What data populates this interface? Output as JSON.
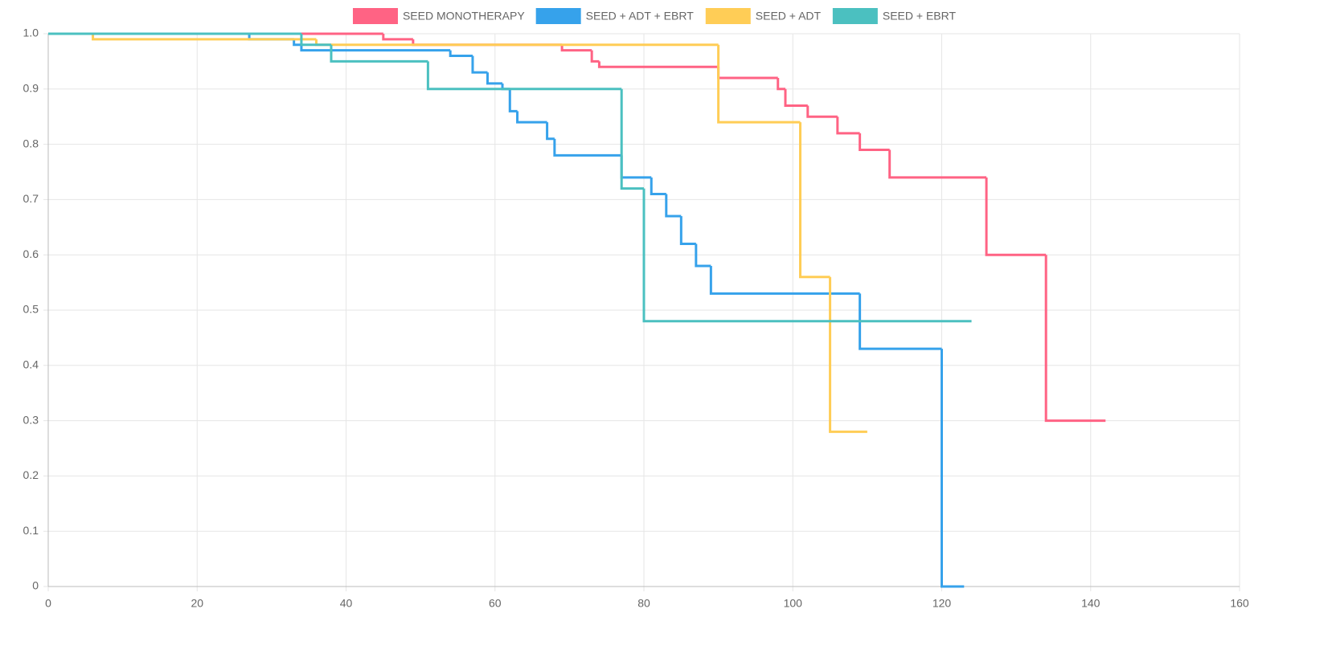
{
  "chart_data": {
    "type": "step",
    "xlim": [
      0,
      160
    ],
    "xticks": [
      0,
      20,
      40,
      60,
      80,
      100,
      120,
      140,
      160
    ],
    "ylim": [
      0,
      1
    ],
    "yticks": [
      0,
      0.1,
      0.2,
      0.3,
      0.4,
      0.5,
      0.6,
      0.7,
      0.8,
      0.9,
      {
        "value": 1,
        "label": "1.0"
      }
    ],
    "grid": true,
    "legend": "top",
    "series": [
      {
        "name": "SEED MONOTHERAPY",
        "color": "#ff6384",
        "x": [
          0,
          45,
          49,
          69,
          73,
          74,
          90,
          98,
          99,
          102,
          106,
          109,
          113,
          126,
          134,
          142
        ],
        "values": [
          1,
          0.99,
          0.98,
          0.97,
          0.95,
          0.94,
          0.92,
          0.9,
          0.87,
          0.85,
          0.82,
          0.79,
          0.74,
          0.6,
          0.3,
          0.3
        ]
      },
      {
        "name": "SEED + ADT + EBRT",
        "color": "#36a2eb",
        "x": [
          0,
          27,
          33,
          34,
          54,
          57,
          59,
          61,
          62,
          63,
          67,
          68,
          77,
          81,
          83,
          85,
          87,
          89,
          109,
          120,
          123
        ],
        "values": [
          1,
          0.99,
          0.98,
          0.97,
          0.96,
          0.93,
          0.91,
          0.9,
          0.86,
          0.84,
          0.81,
          0.78,
          0.74,
          0.71,
          0.67,
          0.62,
          0.58,
          0.53,
          0.43,
          0,
          0
        ]
      },
      {
        "name": "SEED + ADT",
        "color": "#ffcd56",
        "x": [
          0,
          6,
          36,
          90,
          101,
          105,
          110
        ],
        "values": [
          1,
          0.99,
          0.98,
          0.84,
          0.56,
          0.28,
          0.28
        ]
      },
      {
        "name": "SEED + EBRT",
        "color": "#4bc0c0",
        "x": [
          0,
          34,
          38,
          51,
          77,
          80,
          124
        ],
        "values": [
          1,
          0.98,
          0.95,
          0.9,
          0.72,
          0.48,
          0.48
        ]
      }
    ]
  }
}
